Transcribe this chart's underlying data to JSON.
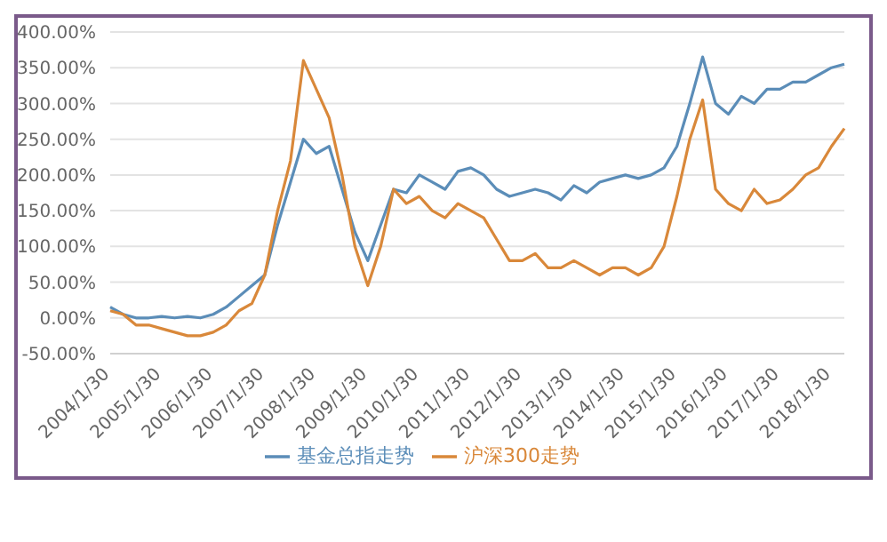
{
  "chart_data": {
    "type": "line",
    "categories": [
      "2004/1/30",
      null,
      null,
      null,
      "2005/1/30",
      null,
      null,
      null,
      "2006/1/30",
      null,
      null,
      null,
      "2007/1/30",
      null,
      null,
      null,
      "2008/1/30",
      null,
      null,
      null,
      "2009/1/30",
      null,
      null,
      null,
      "2010/1/30",
      null,
      null,
      null,
      "2011/1/30",
      null,
      null,
      null,
      "2012/1/30",
      null,
      null,
      null,
      "2013/1/30",
      null,
      null,
      null,
      "2014/1/30",
      null,
      null,
      null,
      "2015/1/30",
      null,
      null,
      null,
      "2016/1/30",
      null,
      null,
      null,
      "2017/1/30",
      null,
      null,
      null,
      "2018/1/30",
      null
    ],
    "series": [
      {
        "name": "基金总指走势",
        "color": "#5b8db8",
        "values": [
          15,
          5,
          0,
          0,
          2,
          0,
          2,
          0,
          5,
          15,
          30,
          45,
          60,
          130,
          190,
          250,
          230,
          240,
          180,
          120,
          80,
          130,
          180,
          175,
          200,
          190,
          180,
          205,
          210,
          200,
          180,
          170,
          175,
          180,
          175,
          165,
          185,
          175,
          190,
          195,
          200,
          195,
          200,
          210,
          240,
          300,
          365,
          300,
          285,
          310,
          300,
          320,
          320,
          330,
          330,
          340,
          350,
          355
        ]
      },
      {
        "name": "沪深300走势",
        "color": "#d9883a",
        "values": [
          10,
          5,
          -10,
          -10,
          -15,
          -20,
          -25,
          -25,
          -20,
          -10,
          10,
          20,
          60,
          150,
          220,
          360,
          320,
          280,
          200,
          100,
          45,
          100,
          180,
          160,
          170,
          150,
          140,
          160,
          150,
          140,
          110,
          80,
          80,
          90,
          70,
          70,
          80,
          70,
          60,
          70,
          70,
          60,
          70,
          100,
          170,
          250,
          305,
          180,
          160,
          150,
          180,
          160,
          165,
          180,
          200,
          210,
          240,
          265
        ]
      }
    ],
    "ylim": [
      -50,
      400
    ],
    "yticks": [
      {
        "value": -50,
        "label": "-50.00%"
      },
      {
        "value": 0,
        "label": "0.00%"
      },
      {
        "value": 50,
        "label": "50.00%"
      },
      {
        "value": 100,
        "label": "100.00%"
      },
      {
        "value": 150,
        "label": "150.00%"
      },
      {
        "value": 200,
        "label": "200.00%"
      },
      {
        "value": 250,
        "label": "250.00%"
      },
      {
        "value": 300,
        "label": "300.00%"
      },
      {
        "value": 350,
        "label": "350.00%"
      },
      {
        "value": 400,
        "label": "400.00%"
      }
    ],
    "grid": "y",
    "legend": "bottom",
    "marker": "none",
    "line_style": "solid"
  }
}
